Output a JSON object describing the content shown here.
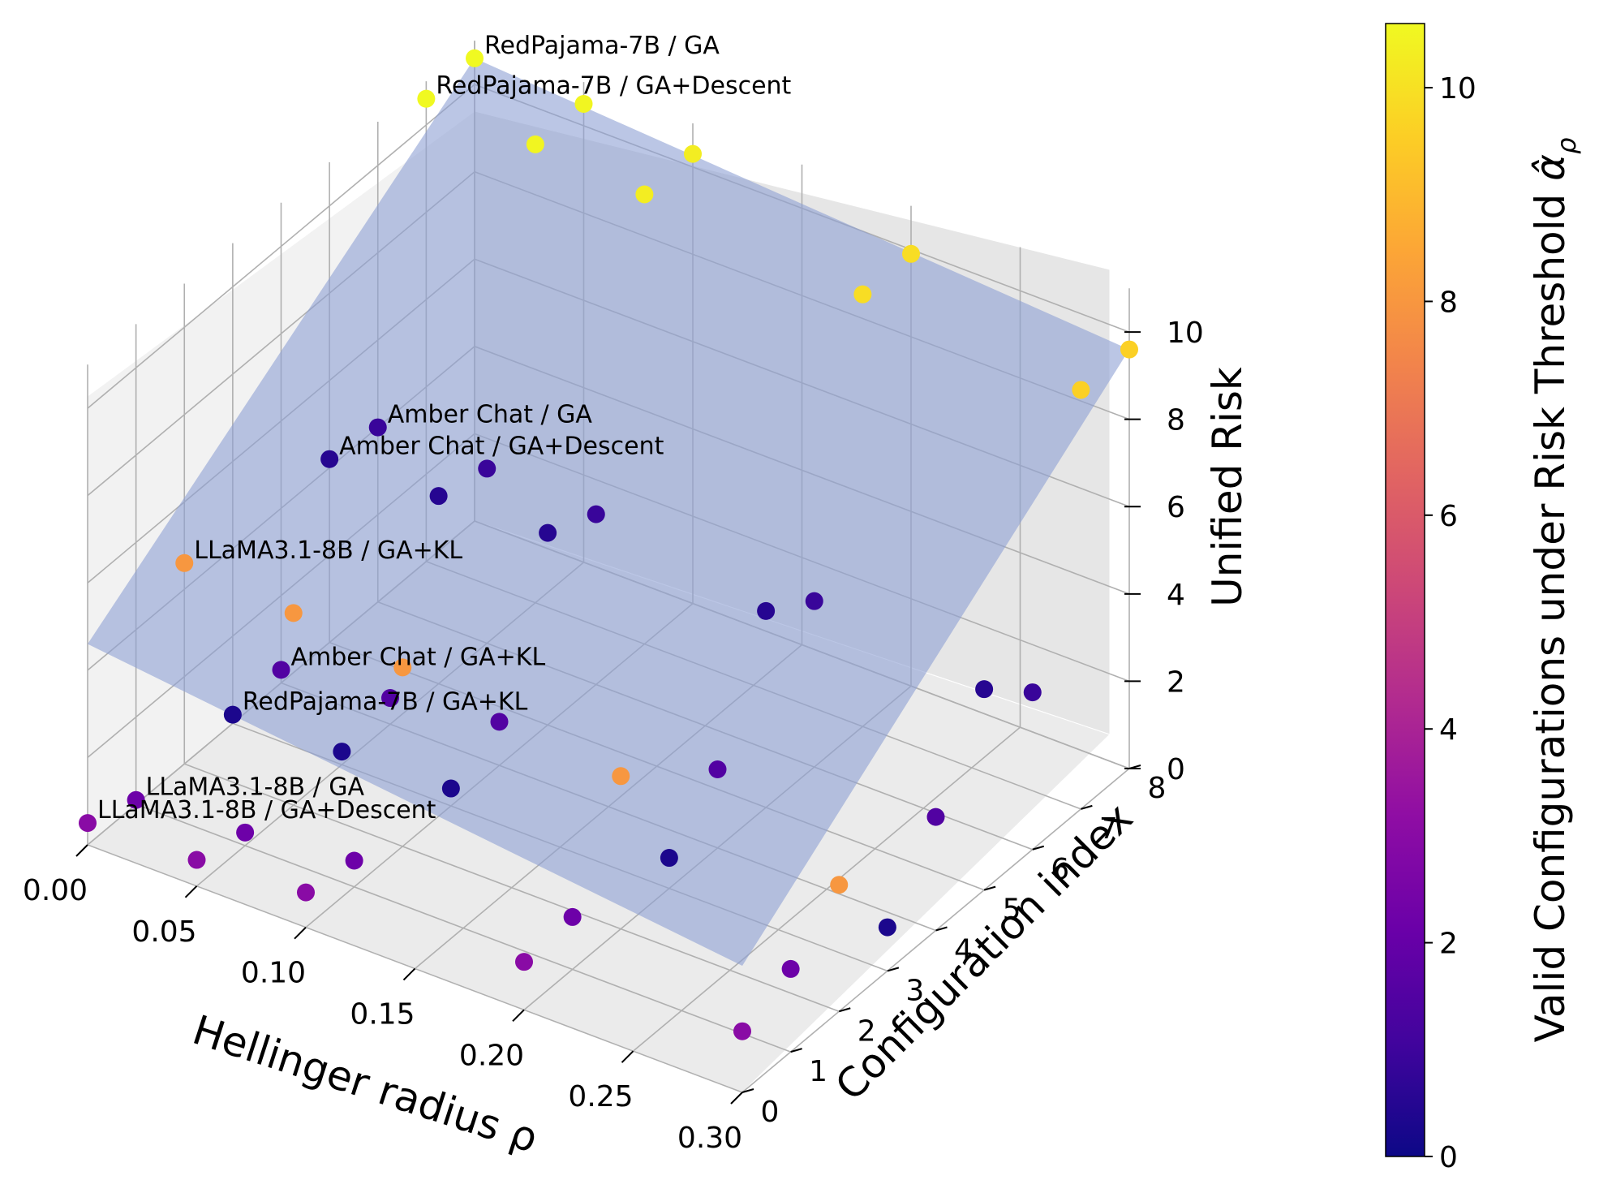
{
  "chart_data": {
    "type": "scatter",
    "projection": "3d",
    "x_axis": {
      "label": "Hellinger radius ρ",
      "ticks": [
        "0.00",
        "0.05",
        "0.10",
        "0.15",
        "0.20",
        "0.25",
        "0.30"
      ],
      "range": [
        0.0,
        0.3
      ]
    },
    "y_axis": {
      "label": "Configuration index",
      "ticks": [
        "0",
        "1",
        "2",
        "3",
        "4",
        "5",
        "6",
        "7",
        "8"
      ],
      "range": [
        0,
        8
      ]
    },
    "z_axis": {
      "label": "Unified Risk",
      "ticks": [
        "0",
        "2",
        "4",
        "6",
        "8",
        "10"
      ],
      "range": [
        0,
        10
      ]
    },
    "colorbar": {
      "label": "Valid Configurations under Risk Threshold α̂ρ",
      "label_text": "Valid Configurations under Risk Threshold ",
      "label_symbol": "α̂",
      "label_subscript": "ρ",
      "ticks": [
        "0",
        "2",
        "4",
        "6",
        "8",
        "10"
      ],
      "range": [
        0,
        10.6
      ],
      "colormap": "plasma"
    },
    "surface": {
      "description": "translucent plane of risk threshold",
      "color": "#8da0d4"
    },
    "points": [
      {
        "x": 0.0,
        "cfg": 8,
        "risk": 10.6,
        "color_value": 10.6
      },
      {
        "x": 0.0,
        "cfg": 7,
        "risk": 10.6,
        "color_value": 10.6
      },
      {
        "x": 0.05,
        "cfg": 8,
        "risk": 10.5,
        "color_value": 10.5
      },
      {
        "x": 0.05,
        "cfg": 7,
        "risk": 10.5,
        "color_value": 10.5
      },
      {
        "x": 0.1,
        "cfg": 8,
        "risk": 10.3,
        "color_value": 10.3
      },
      {
        "x": 0.1,
        "cfg": 7,
        "risk": 10.3,
        "color_value": 10.3
      },
      {
        "x": 0.2,
        "cfg": 8,
        "risk": 9.9,
        "color_value": 9.9
      },
      {
        "x": 0.2,
        "cfg": 7,
        "risk": 9.9,
        "color_value": 9.9
      },
      {
        "x": 0.3,
        "cfg": 8,
        "risk": 9.6,
        "color_value": 9.6
      },
      {
        "x": 0.3,
        "cfg": 7,
        "risk": 9.6,
        "color_value": 9.6
      },
      {
        "x": 0.0,
        "cfg": 2,
        "risk": 4.6,
        "color_value": 8.0
      },
      {
        "x": 0.05,
        "cfg": 2,
        "risk": 4.4,
        "color_value": 8.0
      },
      {
        "x": 0.1,
        "cfg": 2,
        "risk": 4.1,
        "color_value": 8.0
      },
      {
        "x": 0.2,
        "cfg": 2,
        "risk": 3.5,
        "color_value": 8.0
      },
      {
        "x": 0.3,
        "cfg": 2,
        "risk": 2.9,
        "color_value": 8.0
      },
      {
        "x": 0.0,
        "cfg": 5,
        "risk": 4.2,
        "color_value": 0.5
      },
      {
        "x": 0.05,
        "cfg": 5,
        "risk": 4.3,
        "color_value": 0.5
      },
      {
        "x": 0.1,
        "cfg": 5,
        "risk": 4.4,
        "color_value": 0.5
      },
      {
        "x": 0.2,
        "cfg": 5,
        "risk": 4.5,
        "color_value": 0.5
      },
      {
        "x": 0.3,
        "cfg": 5,
        "risk": 4.6,
        "color_value": 0.5
      },
      {
        "x": 0.0,
        "cfg": 6,
        "risk": 4.0,
        "color_value": 0.9
      },
      {
        "x": 0.05,
        "cfg": 6,
        "risk": 4.0,
        "color_value": 0.9
      },
      {
        "x": 0.1,
        "cfg": 6,
        "risk": 3.9,
        "color_value": 0.9
      },
      {
        "x": 0.2,
        "cfg": 6,
        "risk": 3.8,
        "color_value": 0.9
      },
      {
        "x": 0.3,
        "cfg": 6,
        "risk": 3.6,
        "color_value": 0.9
      },
      {
        "x": 0.0,
        "cfg": 4,
        "risk": 0.3,
        "color_value": 1.5
      },
      {
        "x": 0.05,
        "cfg": 4,
        "risk": 0.6,
        "color_value": 1.5
      },
      {
        "x": 0.1,
        "cfg": 4,
        "risk": 1.0,
        "color_value": 1.5
      },
      {
        "x": 0.2,
        "cfg": 4,
        "risk": 1.8,
        "color_value": 1.5
      },
      {
        "x": 0.3,
        "cfg": 4,
        "risk": 2.6,
        "color_value": 1.5
      },
      {
        "x": 0.0,
        "cfg": 1,
        "risk": 0.1,
        "color_value": 2.2
      },
      {
        "x": 0.05,
        "cfg": 1,
        "risk": 0.3,
        "color_value": 2.2
      },
      {
        "x": 0.1,
        "cfg": 1,
        "risk": 0.6,
        "color_value": 2.2
      },
      {
        "x": 0.2,
        "cfg": 1,
        "risk": 1.2,
        "color_value": 2.2
      },
      {
        "x": 0.3,
        "cfg": 1,
        "risk": 1.9,
        "color_value": 2.2
      },
      {
        "x": 0.0,
        "cfg": 3,
        "risk": 0.2,
        "color_value": 0.3
      },
      {
        "x": 0.05,
        "cfg": 3,
        "risk": 0.3,
        "color_value": 0.3
      },
      {
        "x": 0.1,
        "cfg": 3,
        "risk": 0.4,
        "color_value": 0.3
      },
      {
        "x": 0.2,
        "cfg": 3,
        "risk": 0.7,
        "color_value": 0.3
      },
      {
        "x": 0.3,
        "cfg": 3,
        "risk": 1.0,
        "color_value": 0.3
      },
      {
        "x": 0.0,
        "cfg": 0,
        "risk": 0.5,
        "color_value": 3.0
      },
      {
        "x": 0.05,
        "cfg": 0,
        "risk": 0.6,
        "color_value": 3.0
      },
      {
        "x": 0.1,
        "cfg": 0,
        "risk": 0.8,
        "color_value": 3.0
      },
      {
        "x": 0.2,
        "cfg": 0,
        "risk": 1.1,
        "color_value": 3.0
      },
      {
        "x": 0.3,
        "cfg": 0,
        "risk": 1.4,
        "color_value": 3.0
      }
    ],
    "annotations": [
      {
        "text": "RedPajama-7B / GA",
        "x": 0.0,
        "cfg": 8,
        "risk": 10.6
      },
      {
        "text": "RedPajama-7B / GA+Descent",
        "x": 0.0,
        "cfg": 7,
        "risk": 10.6
      },
      {
        "text": "LLaMA3.1-8B / GA+KL",
        "x": 0.0,
        "cfg": 2,
        "risk": 4.6
      },
      {
        "text": "Amber Chat / GA",
        "x": 0.0,
        "cfg": 6,
        "risk": 4.0
      },
      {
        "text": "Amber Chat / GA+Descent",
        "x": 0.0,
        "cfg": 5,
        "risk": 4.2
      },
      {
        "text": "Amber Chat / GA+KL",
        "x": 0.0,
        "cfg": 4,
        "risk": 0.3
      },
      {
        "text": "LLaMA3.1-8B / GA",
        "x": 0.0,
        "cfg": 1,
        "risk": 0.1
      },
      {
        "text": "LLaMA3.1-8B / GA+Descent",
        "x": 0.0,
        "cfg": 0,
        "risk": 0.5
      },
      {
        "text": "RedPajama-7B / GA+KL",
        "x": 0.0,
        "cfg": 3,
        "risk": 0.2
      }
    ]
  }
}
